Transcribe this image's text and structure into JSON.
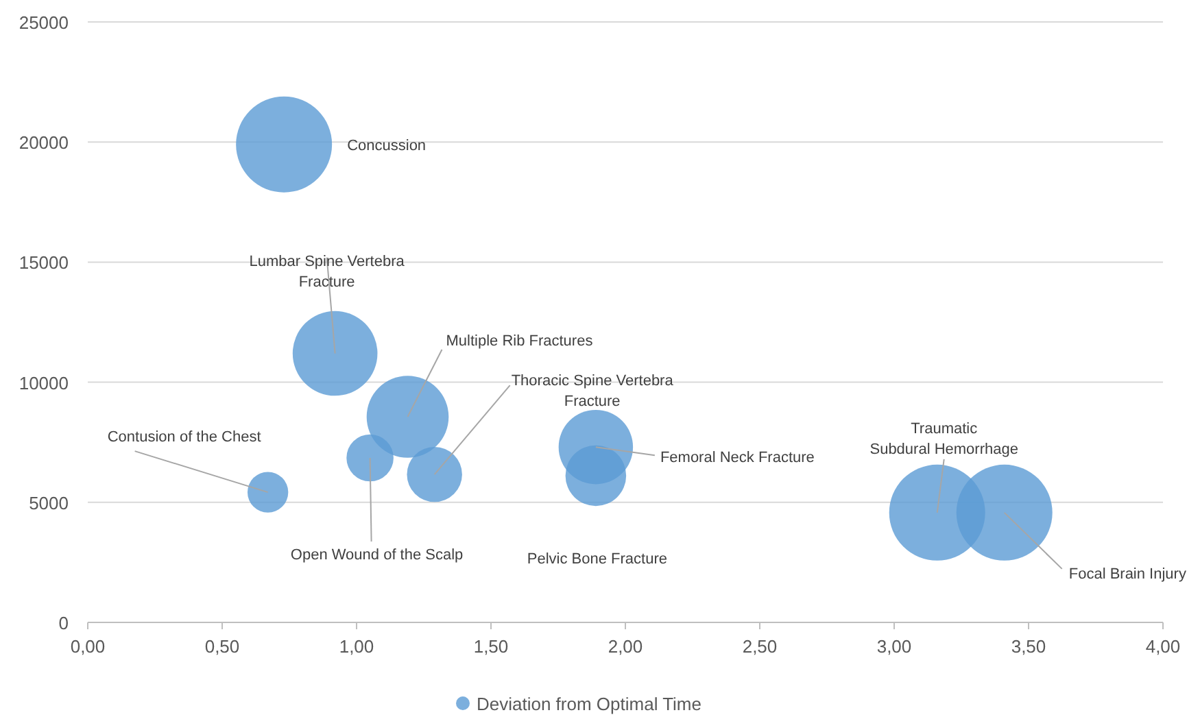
{
  "chart_data": {
    "type": "bubble",
    "x": [
      0.73,
      0.92,
      1.19,
      1.29,
      1.05,
      0.67,
      1.89,
      1.89,
      3.16,
      3.41
    ],
    "series": [
      {
        "name": "Deviation from Optimal Time",
        "color": "#5b9bd5",
        "values": [
          19900,
          11200,
          8560,
          6160,
          6850,
          5420,
          7300,
          6110,
          4570,
          4570
        ],
        "sizes": [
          1,
          0.78,
          0.73,
          0.33,
          0.24,
          0.18,
          0.6,
          0.4,
          1,
          1
        ]
      }
    ],
    "annotations": [
      "Concussion",
      {
        "text": "Lumbar Spine Vertebra Fracture",
        "x": 0.92,
        "y": 11200
      },
      {
        "text": "Multiple Rib Fractures",
        "x": 1.19,
        "y": 8560
      },
      {
        "text": "Thoracic Spine Vertebra Fracture",
        "x": 1.29,
        "y": 6160
      },
      {
        "text": "Open Wound of the Scalp",
        "x": 1.05,
        "y": 6850
      },
      {
        "text": "Contusion of the Chest",
        "x": 0.67,
        "y": 5420
      },
      {
        "text": "Femoral Neck Fracture",
        "x": 1.89,
        "y": 7300
      },
      "Pelvic Bone Fracture",
      {
        "text": "Traumatic Subdural Hemorrhage",
        "x": 3.16,
        "y": 4570
      },
      {
        "text": "Focal Brain Injury",
        "x": 3.41,
        "y": 4570
      }
    ],
    "xlim": [
      0,
      4
    ],
    "xticks": [
      {
        "value": 0,
        "label": "0,00"
      },
      {
        "value": 0.5,
        "label": "0,50"
      },
      {
        "value": 1,
        "label": "1,00"
      },
      {
        "value": 1.5,
        "label": "1,50"
      },
      {
        "value": 2,
        "label": "2,00"
      },
      {
        "value": 2.5,
        "label": "2,50"
      },
      {
        "value": 3,
        "label": "3,00"
      },
      {
        "value": 3.5,
        "label": "3,50"
      },
      {
        "value": 4,
        "label": "4,00"
      }
    ],
    "ylim": [
      0,
      25000
    ],
    "yticks": [
      0,
      5000,
      10000,
      15000,
      20000,
      25000
    ],
    "grid": "y",
    "legend": "bottom"
  }
}
